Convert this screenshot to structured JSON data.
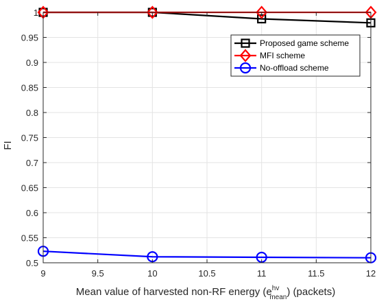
{
  "chart_data": {
    "type": "line",
    "xlabel_prefix": "Mean value of harvested non-RF energy (e",
    "xlabel_sup": "hv",
    "xlabel_sub": "mean",
    "xlabel_suffix": ") (packets)",
    "ylabel": "FI",
    "xlim": [
      9,
      12
    ],
    "ylim": [
      0.5,
      1
    ],
    "xticks": [
      "9",
      "9.5",
      "10",
      "10.5",
      "11",
      "11.5",
      "12"
    ],
    "yticks": [
      "0.5",
      "0.55",
      "0.6",
      "0.65",
      "0.7",
      "0.75",
      "0.8",
      "0.85",
      "0.9",
      "0.95",
      "1"
    ],
    "grid": true,
    "legend_position": "top-right",
    "x": [
      9,
      10,
      11,
      12
    ],
    "series": [
      {
        "name": "Proposed game scheme",
        "values": [
          1.0,
          1.0,
          0.987,
          0.979
        ],
        "color": "#000000",
        "marker": "square"
      },
      {
        "name": "MFI scheme",
        "values": [
          1.0,
          1.0,
          1.0,
          1.0
        ],
        "color": "#ff0000",
        "marker": "diamond"
      },
      {
        "name": "No-offload scheme",
        "values": [
          0.523,
          0.512,
          0.511,
          0.51
        ],
        "color": "#0000ff",
        "marker": "circle"
      }
    ]
  }
}
